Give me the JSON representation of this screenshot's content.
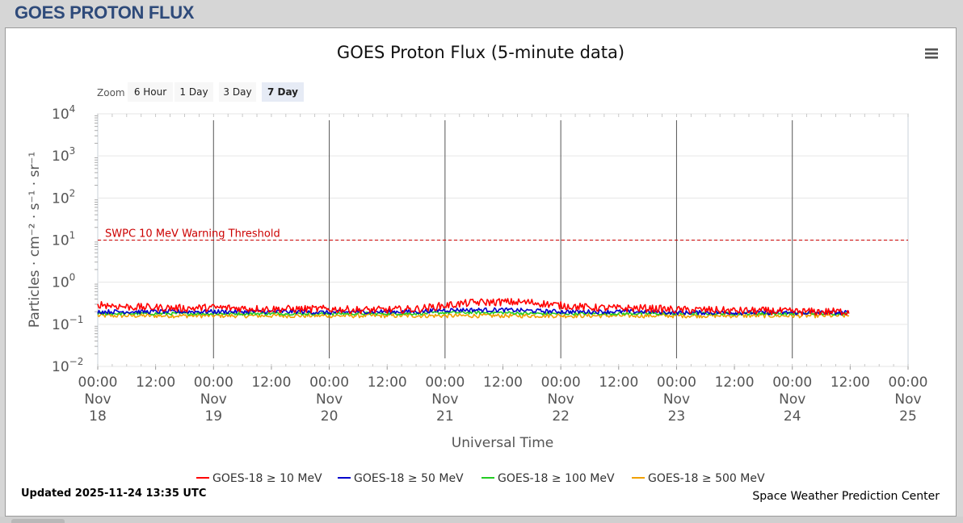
{
  "page": {
    "title": "GOES PROTON FLUX"
  },
  "chart": {
    "title": "GOES Proton Flux (5-minute data)",
    "zoom_label": "Zoom",
    "zoom_buttons": [
      {
        "label": "6 Hour",
        "active": false
      },
      {
        "label": "1 Day",
        "active": false
      },
      {
        "label": "3 Day",
        "active": false
      },
      {
        "label": "7 Day",
        "active": true
      }
    ],
    "menu_icon": "hamburger-menu-icon",
    "threshold_label": "SWPC 10 MeV Warning Threshold",
    "updated": "Updated 2025-11-24 13:35 UTC",
    "credit": "Space Weather Prediction Center"
  },
  "chart_data": {
    "type": "line",
    "title": "GOES Proton Flux (5-minute data)",
    "xlabel": "Universal Time",
    "ylabel": "Particles · cm⁻² · s⁻¹ · sr⁻¹",
    "y_scale": "log",
    "ylim": [
      0.01,
      10000
    ],
    "y_tick_exponents": [
      4,
      3,
      2,
      1,
      0,
      -1,
      -2
    ],
    "xlim": [
      "2025-11-18 00:00",
      "2025-11-25 00:00"
    ],
    "x_ticks": [
      {
        "time": "00:00",
        "date": [
          "Nov",
          "18"
        ]
      },
      {
        "time": "12:00",
        "date": [
          "",
          ""
        ]
      },
      {
        "time": "00:00",
        "date": [
          "Nov",
          "19"
        ]
      },
      {
        "time": "12:00",
        "date": [
          "",
          ""
        ]
      },
      {
        "time": "00:00",
        "date": [
          "Nov",
          "20"
        ]
      },
      {
        "time": "12:00",
        "date": [
          "",
          ""
        ]
      },
      {
        "time": "00:00",
        "date": [
          "Nov",
          "21"
        ]
      },
      {
        "time": "12:00",
        "date": [
          "",
          ""
        ]
      },
      {
        "time": "00:00",
        "date": [
          "Nov",
          "22"
        ]
      },
      {
        "time": "12:00",
        "date": [
          "",
          ""
        ]
      },
      {
        "time": "00:00",
        "date": [
          "Nov",
          "23"
        ]
      },
      {
        "time": "12:00",
        "date": [
          "",
          ""
        ]
      },
      {
        "time": "00:00",
        "date": [
          "Nov",
          "24"
        ]
      },
      {
        "time": "12:00",
        "date": [
          "",
          ""
        ]
      },
      {
        "time": "00:00",
        "date": [
          "Nov",
          "25"
        ]
      }
    ],
    "threshold": {
      "value": 10,
      "label": "SWPC 10 MeV Warning Threshold",
      "color": "#cc0000"
    },
    "legend_position": "bottom",
    "grid": true,
    "x_days": [
      0,
      0.25,
      0.5,
      0.75,
      1,
      1.25,
      1.5,
      1.75,
      2,
      2.25,
      2.5,
      2.75,
      3,
      3.25,
      3.5,
      3.75,
      4,
      4.25,
      4.5,
      4.75,
      5,
      5.25,
      5.5,
      5.75,
      6,
      6.25,
      6.5
    ],
    "series": [
      {
        "name": "GOES-18 ≥ 10 MeV",
        "color": "#ff0000",
        "values": [
          0.3,
          0.26,
          0.25,
          0.24,
          0.25,
          0.24,
          0.23,
          0.23,
          0.23,
          0.22,
          0.22,
          0.23,
          0.28,
          0.33,
          0.34,
          0.33,
          0.28,
          0.25,
          0.24,
          0.24,
          0.22,
          0.22,
          0.21,
          0.21,
          0.2,
          0.2,
          0.2
        ]
      },
      {
        "name": "GOES-18 ≥ 50 MeV",
        "color": "#0000cc",
        "values": [
          0.2,
          0.2,
          0.2,
          0.2,
          0.2,
          0.2,
          0.2,
          0.2,
          0.19,
          0.2,
          0.2,
          0.2,
          0.22,
          0.22,
          0.22,
          0.21,
          0.2,
          0.2,
          0.2,
          0.2,
          0.19,
          0.19,
          0.19,
          0.19,
          0.19,
          0.19,
          0.19
        ]
      },
      {
        "name": "GOES-18 ≥ 100 MeV",
        "color": "#22cc22",
        "values": [
          0.18,
          0.18,
          0.18,
          0.18,
          0.18,
          0.18,
          0.18,
          0.18,
          0.18,
          0.18,
          0.18,
          0.18,
          0.19,
          0.19,
          0.19,
          0.18,
          0.18,
          0.18,
          0.18,
          0.18,
          0.18,
          0.18,
          0.18,
          0.18,
          0.18,
          0.18,
          0.18
        ]
      },
      {
        "name": "GOES-18 ≥ 500 MeV",
        "color": "#f0a000",
        "values": [
          0.16,
          0.16,
          0.16,
          0.16,
          0.16,
          0.16,
          0.16,
          0.16,
          0.16,
          0.16,
          0.16,
          0.16,
          0.16,
          0.16,
          0.16,
          0.16,
          0.16,
          0.16,
          0.16,
          0.16,
          0.16,
          0.16,
          0.16,
          0.16,
          0.16,
          0.16,
          0.16
        ]
      }
    ]
  }
}
